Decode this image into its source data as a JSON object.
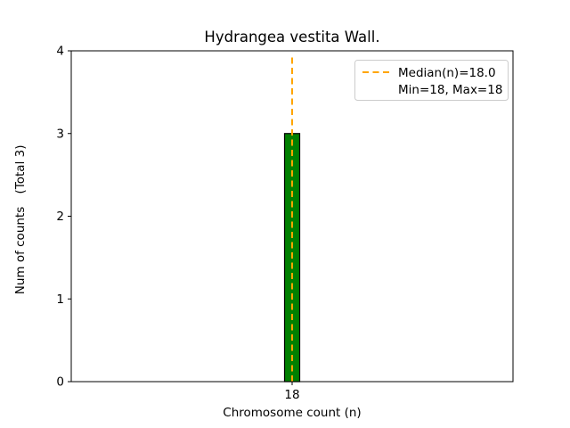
{
  "figure": {
    "title": "Hydrangea vestita Wall.",
    "xlabel": "Chromosome count (n)",
    "ylabel": "Num of counts",
    "ylabel_total": "(Total 3)"
  },
  "legend": {
    "position": "upper right",
    "border_color": "#cccccc",
    "entries": [
      {
        "label": "Median(n)=18.0",
        "marker": "dashed-line",
        "color": "#ffa500"
      },
      {
        "label": "Min=18, Max=18",
        "marker": "none"
      }
    ]
  },
  "chart_data": {
    "type": "bar",
    "title": "Hydrangea vestita Wall.",
    "xlabel": "Chromosome count (n)",
    "ylabel": "Num of counts (Total 3)",
    "categories": [
      "18"
    ],
    "values": [
      3
    ],
    "ylim": [
      0,
      4
    ],
    "yticks": [
      0,
      1,
      2,
      3,
      4
    ],
    "xticks": [
      "18"
    ],
    "bar_color": "#008000",
    "bar_edge_color": "#000000",
    "median_line": {
      "value": 18.0,
      "color": "#ffa500",
      "style": "dashed",
      "label": "Median(n)=18.0"
    },
    "stats": {
      "total_counts": 3,
      "median_n": 18.0,
      "min_n": 18,
      "max_n": 18
    },
    "grid": false,
    "legend_position": "upper right"
  }
}
